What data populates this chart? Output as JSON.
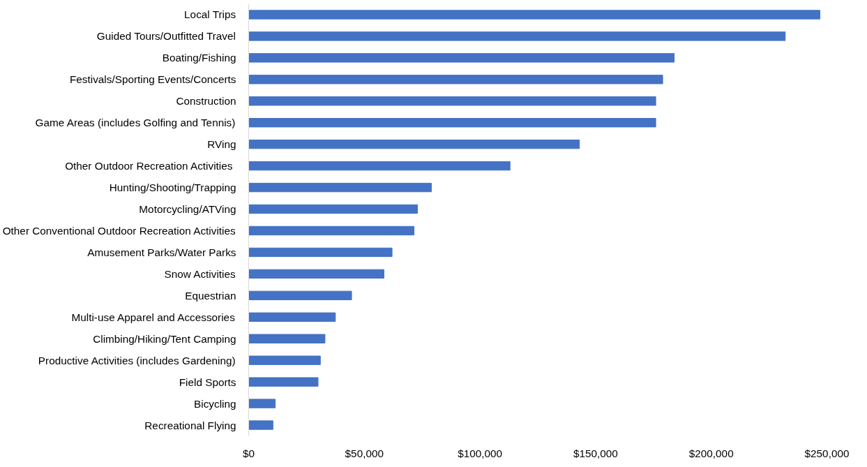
{
  "chart_data": {
    "type": "bar",
    "orientation": "horizontal",
    "color": "#4472c4",
    "grid": false,
    "categories": [
      "Local Trips",
      "Guided Tours/Outfitted Travel",
      "Boating/Fishing",
      "Festivals/Sporting Events/Concerts",
      "Construction",
      "Game Areas (includes Golfing and Tennis)",
      "RVing",
      "Other Outdoor Recreation Activities ",
      "Hunting/Shooting/Trapping",
      "Motorcycling/ATVing",
      "Other Conventional Outdoor Recreation Activities",
      "Amusement Parks/Water Parks",
      "Snow Activities",
      "Equestrian",
      "Multi-use Apparel and Accessories",
      "Climbing/Hiking/Tent Camping",
      "Productive Activities (includes Gardening)",
      "Field Sports",
      "Bicycling",
      "Recreational Flying"
    ],
    "values": [
      247000,
      232000,
      184000,
      179000,
      176000,
      176000,
      143000,
      113000,
      79000,
      73000,
      71500,
      62000,
      58500,
      44500,
      37500,
      33000,
      31000,
      30000,
      11500,
      10500
    ],
    "xlim": [
      0,
      250000
    ],
    "xticks": [
      {
        "value": 0,
        "label": "$0"
      },
      {
        "value": 50000,
        "label": "$50,000"
      },
      {
        "value": 100000,
        "label": "$100,000"
      },
      {
        "value": 150000,
        "label": "$150,000"
      },
      {
        "value": 200000,
        "label": "$200,000"
      },
      {
        "value": 250000,
        "label": "$250,000"
      }
    ]
  }
}
